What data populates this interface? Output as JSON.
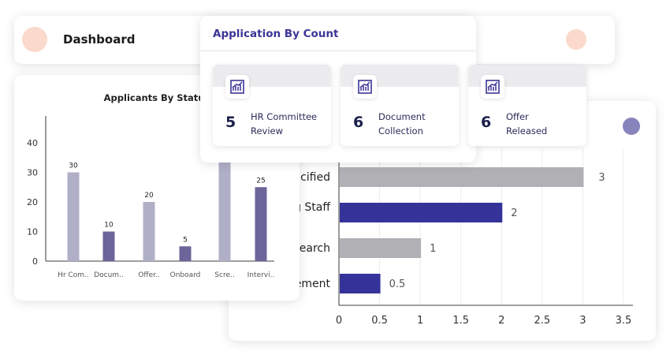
{
  "header": {
    "title": "Dashboard"
  },
  "application_by_count": {
    "title": "Application By Count",
    "items": [
      {
        "count": "5",
        "label_line1": "HR Committee",
        "label_line2": "Review"
      },
      {
        "count": "6",
        "label_line1": "Document",
        "label_line2": "Collection"
      },
      {
        "count": "6",
        "label_line1": "Offer",
        "label_line2": "Released"
      }
    ]
  },
  "colors": {
    "accent": "#3b3596",
    "bar_light": "#b0afc8",
    "bar_dark": "#6b6599",
    "hbar_gray": "#b0b0b5",
    "hbar_blue": "#35339a",
    "peach": "#fbd9cc",
    "purple_dot": "#8783bd"
  },
  "chart_data": [
    {
      "type": "bar",
      "title": "Applicants By Status",
      "categories": [
        "Hr Com..",
        "Docum..",
        "Offer..",
        "Onboard",
        "Scre..",
        "Intervi.."
      ],
      "values": [
        30,
        10,
        20,
        5,
        null,
        25
      ],
      "data_labels": [
        "30",
        "10",
        "20",
        "5",
        "",
        "25"
      ],
      "ylim": [
        0,
        40
      ],
      "yticks": [
        0,
        10,
        20,
        30,
        40
      ],
      "grid": false
    },
    {
      "type": "bar",
      "orientation": "horizontal",
      "categories": [
        "cified",
        "g Staff",
        "earch",
        "ement"
      ],
      "values": [
        3,
        2,
        1,
        0.5
      ],
      "xlim": [
        0,
        3.5
      ],
      "xticks": [
        "0",
        "0.5",
        "1",
        "1.5",
        "2",
        "2.5",
        "3",
        "3.5"
      ],
      "grid": true
    }
  ]
}
